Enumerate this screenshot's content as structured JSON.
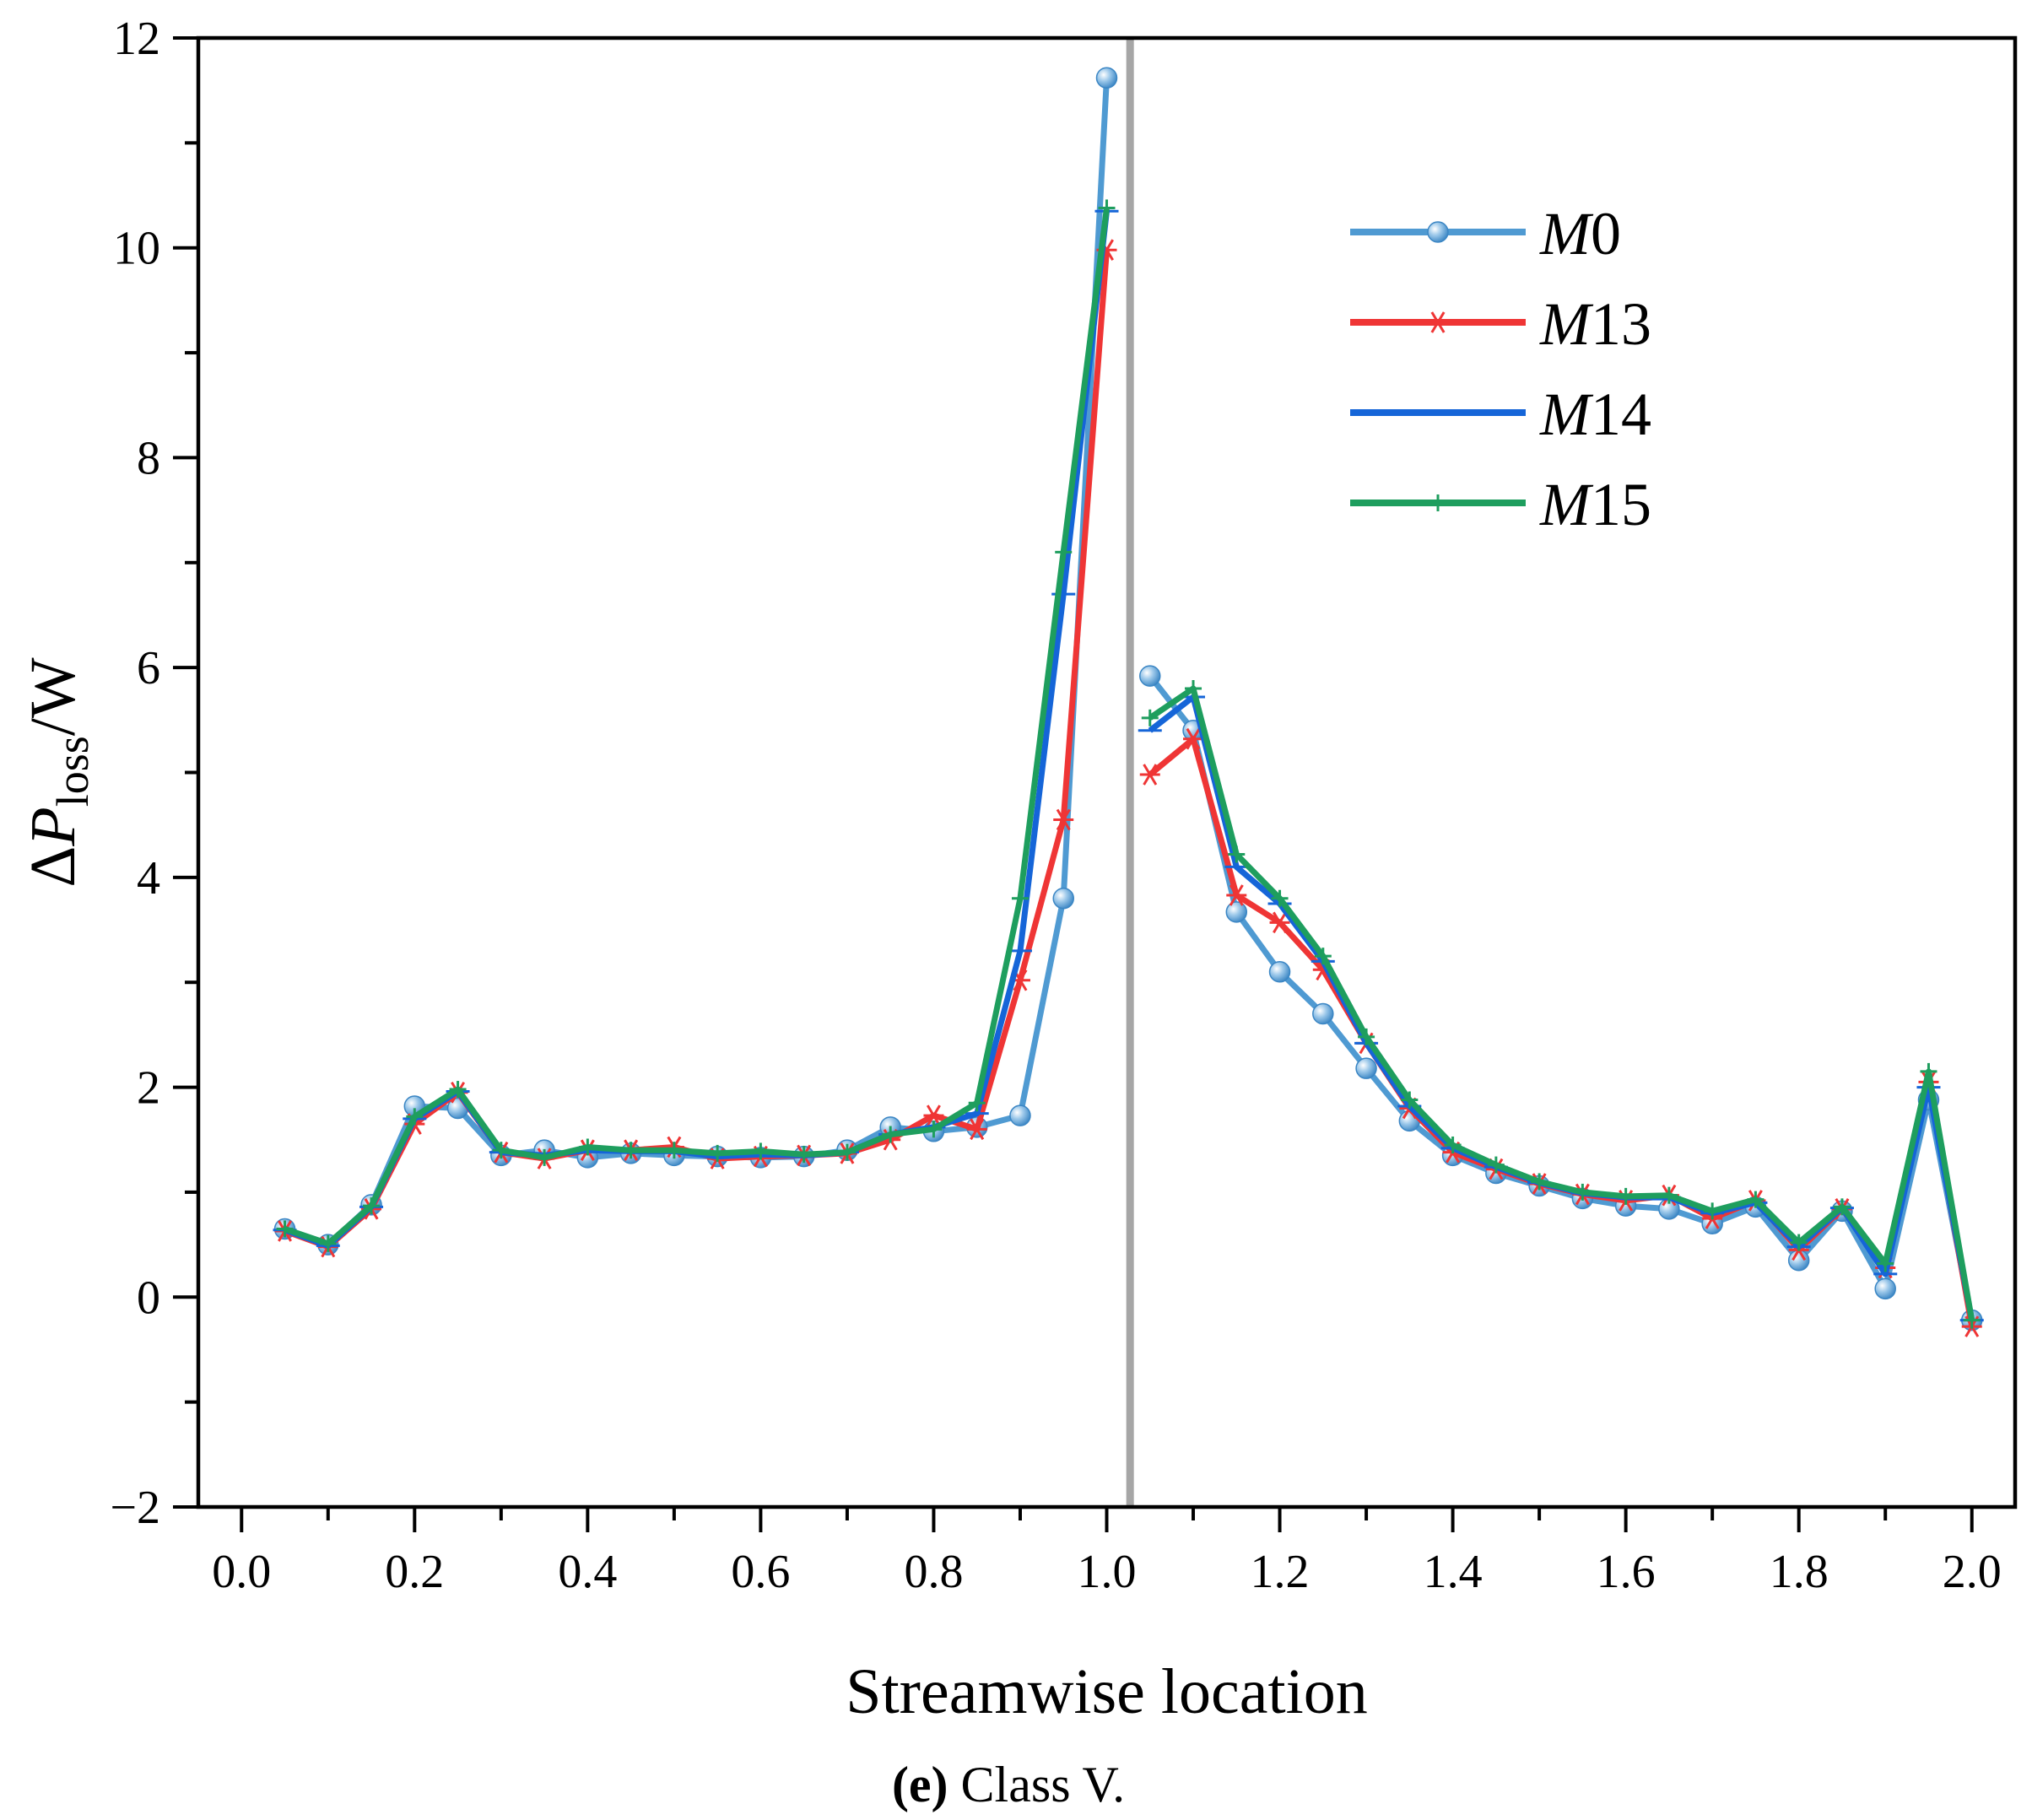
{
  "chart_data": {
    "type": "line",
    "xlabel": "Streamwise location",
    "ylabel": {
      "prefix": "Δ",
      "var": "P",
      "sub": "loss",
      "suffix": "/W"
    },
    "caption": {
      "letter": "(e)",
      "text": " Class V."
    },
    "xlim": [
      -0.05,
      2.05
    ],
    "ylim": [
      -2,
      12
    ],
    "x_ticks": [
      "0.0",
      "0.2",
      "0.4",
      "0.6",
      "0.8",
      "1.0",
      "1.2",
      "1.4",
      "1.6",
      "1.8",
      "2.0"
    ],
    "y_ticks": [
      "−2",
      "0",
      "2",
      "4",
      "6",
      "8",
      "10",
      "12"
    ],
    "divider_x": 1.027,
    "x": [
      0.05,
      0.1,
      0.15,
      0.2,
      0.25,
      0.3,
      0.35,
      0.4,
      0.45,
      0.5,
      0.55,
      0.6,
      0.65,
      0.7,
      0.75,
      0.8,
      0.85,
      0.9,
      0.95,
      1.0,
      1.05,
      1.1,
      1.15,
      1.2,
      1.25,
      1.3,
      1.35,
      1.4,
      1.45,
      1.5,
      1.55,
      1.6,
      1.65,
      1.7,
      1.75,
      1.8,
      1.85,
      1.9,
      1.95,
      2.0
    ],
    "break_after_index": 19,
    "series": [
      {
        "name": "M",
        "num": "0",
        "color": "#4f9ad2",
        "marker": "circle",
        "values": [
          0.65,
          0.5,
          0.88,
          1.82,
          1.8,
          1.35,
          1.4,
          1.33,
          1.37,
          1.35,
          1.34,
          1.33,
          1.34,
          1.4,
          1.62,
          1.58,
          1.62,
          1.73,
          3.8,
          11.62,
          5.92,
          5.4,
          3.67,
          3.1,
          2.7,
          2.18,
          1.68,
          1.35,
          1.18,
          1.06,
          0.94,
          0.87,
          0.84,
          0.7,
          0.86,
          0.35,
          0.82,
          0.08,
          1.88,
          -0.22
        ]
      },
      {
        "name": "M",
        "num": "13",
        "color": "#ef3535",
        "marker": "asterisk",
        "values": [
          0.63,
          0.48,
          0.84,
          1.65,
          1.95,
          1.38,
          1.32,
          1.4,
          1.4,
          1.43,
          1.32,
          1.34,
          1.35,
          1.37,
          1.5,
          1.73,
          1.6,
          3.02,
          4.55,
          9.98,
          4.98,
          5.32,
          3.83,
          3.57,
          3.12,
          2.42,
          1.8,
          1.38,
          1.22,
          1.08,
          0.98,
          0.92,
          0.97,
          0.75,
          0.92,
          0.45,
          0.84,
          0.28,
          2.05,
          -0.28
        ]
      },
      {
        "name": "M",
        "num": "14",
        "color": "#1565d8",
        "marker": "tick",
        "values": [
          0.64,
          0.49,
          0.86,
          1.7,
          1.96,
          1.38,
          1.35,
          1.4,
          1.39,
          1.39,
          1.34,
          1.36,
          1.35,
          1.38,
          1.55,
          1.62,
          1.75,
          3.3,
          6.7,
          10.35,
          5.4,
          5.72,
          4.1,
          3.75,
          3.2,
          2.42,
          1.82,
          1.42,
          1.24,
          1.09,
          0.99,
          0.95,
          0.95,
          0.8,
          0.9,
          0.48,
          0.85,
          0.22,
          2.0,
          -0.22
        ]
      },
      {
        "name": "M",
        "num": "15",
        "color": "#1e9e5e",
        "marker": "plus",
        "values": [
          0.65,
          0.51,
          0.87,
          1.72,
          1.98,
          1.4,
          1.33,
          1.43,
          1.4,
          1.4,
          1.37,
          1.39,
          1.36,
          1.38,
          1.55,
          1.6,
          1.85,
          3.8,
          7.1,
          10.38,
          5.52,
          5.8,
          4.22,
          3.8,
          3.25,
          2.48,
          1.88,
          1.45,
          1.26,
          1.1,
          1.0,
          0.96,
          0.97,
          0.82,
          0.93,
          0.52,
          0.86,
          0.32,
          2.15,
          -0.22
        ]
      }
    ]
  }
}
